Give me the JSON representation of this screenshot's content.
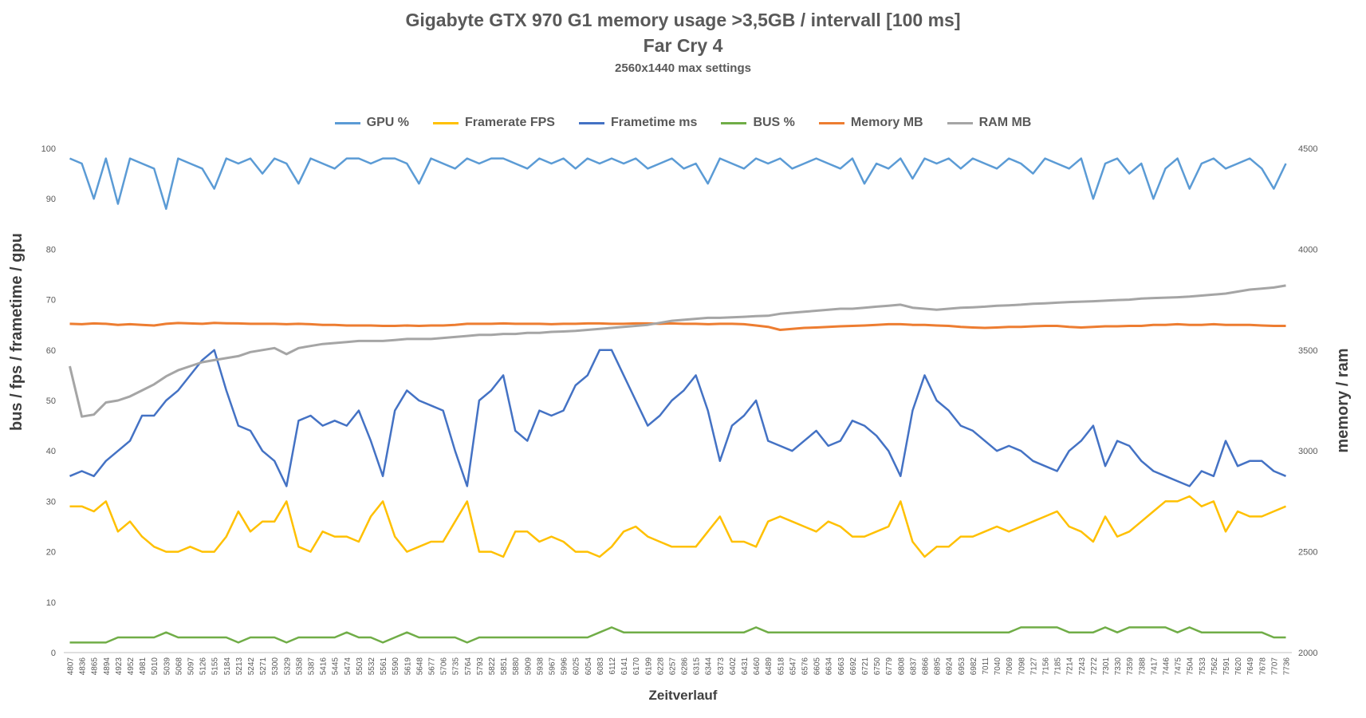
{
  "chart_data": {
    "type": "line",
    "title": "Gigabyte GTX 970 G1 memory usage >3,5GB / intervall [100 ms]",
    "subtitle": "Far Cry 4",
    "subtitle2": "2560x1440 max settings",
    "xlabel": "Zeitverlauf",
    "ylabel_left": "bus / fps / frametime / gpu",
    "ylabel_right": "memory / ram",
    "ylim_left": [
      0,
      100
    ],
    "ylim_right": [
      2000,
      4500
    ],
    "yticks_left": [
      0,
      10,
      20,
      30,
      40,
      50,
      60,
      70,
      80,
      90,
      100
    ],
    "yticks_right": [
      2000,
      2500,
      3000,
      3500,
      4000,
      4500
    ],
    "legend_position": "top",
    "grid": false,
    "x": [
      4807,
      4836,
      4865,
      4894,
      4923,
      4952,
      4981,
      5010,
      5039,
      5068,
      5097,
      5126,
      5155,
      5184,
      5213,
      5242,
      5271,
      5300,
      5329,
      5358,
      5387,
      5416,
      5445,
      5474,
      5503,
      5532,
      5561,
      5590,
      5619,
      5648,
      5677,
      5706,
      5735,
      5764,
      5793,
      5822,
      5851,
      5880,
      5909,
      5938,
      5967,
      5996,
      6025,
      6054,
      6083,
      6112,
      6141,
      6170,
      6199,
      6228,
      6257,
      6286,
      6315,
      6344,
      6373,
      6402,
      6431,
      6460,
      6489,
      6518,
      6547,
      6576,
      6605,
      6634,
      6663,
      6692,
      6721,
      6750,
      6779,
      6808,
      6837,
      6866,
      6895,
      6924,
      6953,
      6982,
      7011,
      7040,
      7069,
      7098,
      7127,
      7156,
      7185,
      7214,
      7243,
      7272,
      7301,
      7330,
      7359,
      7388,
      7417,
      7446,
      7475,
      7504,
      7533,
      7562,
      7591,
      7620,
      7649,
      7678,
      7707,
      7736
    ],
    "series": [
      {
        "name": "GPU %",
        "axis": "left",
        "color": "#5b9bd5",
        "values": [
          98,
          97,
          90,
          98,
          89,
          98,
          97,
          96,
          88,
          98,
          97,
          96,
          92,
          98,
          97,
          98,
          95,
          98,
          97,
          93,
          98,
          97,
          96,
          98,
          98,
          97,
          98,
          98,
          97,
          93,
          98,
          97,
          96,
          98,
          97,
          98,
          98,
          97,
          96,
          98,
          97,
          98,
          96,
          98,
          97,
          98,
          97,
          98,
          96,
          97,
          98,
          96,
          97,
          93,
          98,
          97,
          96,
          98,
          97,
          98,
          96,
          97,
          98,
          97,
          96,
          98,
          93,
          97,
          96,
          98,
          94,
          98,
          97,
          98,
          96,
          98,
          97,
          96,
          98,
          97,
          95,
          98,
          97,
          96,
          98,
          90,
          97,
          98,
          95,
          97,
          90,
          96,
          98,
          92,
          97,
          98,
          96,
          97,
          98,
          96,
          92,
          97
        ]
      },
      {
        "name": "Framerate FPS",
        "axis": "left",
        "color": "#ffc000",
        "values": [
          29,
          29,
          28,
          30,
          24,
          26,
          23,
          21,
          20,
          20,
          21,
          20,
          20,
          23,
          28,
          24,
          26,
          26,
          30,
          21,
          20,
          24,
          23,
          23,
          22,
          27,
          30,
          23,
          20,
          21,
          22,
          22,
          26,
          30,
          20,
          20,
          19,
          24,
          24,
          22,
          23,
          22,
          20,
          20,
          19,
          21,
          24,
          25,
          23,
          22,
          21,
          21,
          21,
          24,
          27,
          22,
          22,
          21,
          26,
          27,
          26,
          25,
          24,
          26,
          25,
          23,
          23,
          24,
          25,
          30,
          22,
          19,
          21,
          21,
          23,
          23,
          24,
          25,
          24,
          25,
          26,
          27,
          28,
          25,
          24,
          22,
          27,
          23,
          24,
          26,
          28,
          30,
          30,
          31,
          29,
          30,
          24,
          28,
          27,
          27,
          28,
          29
        ]
      },
      {
        "name": "Frametime ms",
        "axis": "left",
        "color": "#4472c4",
        "values": [
          35,
          36,
          35,
          38,
          40,
          42,
          47,
          47,
          50,
          52,
          55,
          58,
          60,
          52,
          45,
          44,
          40,
          38,
          33,
          46,
          47,
          45,
          46,
          45,
          48,
          42,
          35,
          48,
          52,
          50,
          49,
          48,
          40,
          33,
          50,
          52,
          55,
          44,
          42,
          48,
          47,
          48,
          53,
          55,
          60,
          60,
          55,
          50,
          45,
          47,
          50,
          52,
          55,
          48,
          38,
          45,
          47,
          50,
          42,
          41,
          40,
          42,
          44,
          41,
          42,
          46,
          45,
          43,
          40,
          35,
          48,
          55,
          50,
          48,
          45,
          44,
          42,
          40,
          41,
          40,
          38,
          37,
          36,
          40,
          42,
          45,
          37,
          42,
          41,
          38,
          36,
          35,
          34,
          33,
          36,
          35,
          42,
          37,
          38,
          38,
          36,
          35
        ]
      },
      {
        "name": "BUS %",
        "axis": "left",
        "color": "#70ad47",
        "values": [
          2,
          2,
          2,
          2,
          3,
          3,
          3,
          3,
          4,
          3,
          3,
          3,
          3,
          3,
          2,
          3,
          3,
          3,
          2,
          3,
          3,
          3,
          3,
          4,
          3,
          3,
          2,
          3,
          4,
          3,
          3,
          3,
          3,
          2,
          3,
          3,
          3,
          3,
          3,
          3,
          3,
          3,
          3,
          3,
          4,
          5,
          4,
          4,
          4,
          4,
          4,
          4,
          4,
          4,
          4,
          4,
          4,
          5,
          4,
          4,
          4,
          4,
          4,
          4,
          4,
          4,
          4,
          4,
          4,
          4,
          4,
          4,
          4,
          4,
          4,
          4,
          4,
          4,
          4,
          5,
          5,
          5,
          5,
          4,
          4,
          4,
          5,
          4,
          5,
          5,
          5,
          5,
          4,
          5,
          4,
          4,
          4,
          4,
          4,
          4,
          3,
          3
        ]
      },
      {
        "name": "Memory MB",
        "axis": "right",
        "color": "#ed7d31",
        "values": [
          3630,
          3628,
          3632,
          3630,
          3625,
          3628,
          3625,
          3622,
          3630,
          3634,
          3632,
          3630,
          3635,
          3633,
          3632,
          3630,
          3630,
          3630,
          3628,
          3630,
          3628,
          3625,
          3625,
          3622,
          3622,
          3622,
          3620,
          3620,
          3622,
          3620,
          3622,
          3622,
          3625,
          3630,
          3630,
          3630,
          3632,
          3630,
          3630,
          3630,
          3628,
          3630,
          3630,
          3632,
          3632,
          3630,
          3630,
          3632,
          3632,
          3630,
          3632,
          3630,
          3630,
          3628,
          3630,
          3630,
          3628,
          3622,
          3615,
          3600,
          3605,
          3610,
          3612,
          3615,
          3618,
          3620,
          3622,
          3625,
          3628,
          3628,
          3625,
          3625,
          3622,
          3620,
          3615,
          3612,
          3610,
          3612,
          3615,
          3615,
          3618,
          3620,
          3620,
          3615,
          3612,
          3615,
          3618,
          3618,
          3620,
          3620,
          3625,
          3625,
          3628,
          3625,
          3625,
          3628,
          3625,
          3625,
          3625,
          3622,
          3620,
          3620
        ]
      },
      {
        "name": "RAM MB",
        "axis": "right",
        "color": "#a5a5a5",
        "values": [
          3420,
          3170,
          3180,
          3240,
          3250,
          3270,
          3300,
          3330,
          3370,
          3400,
          3420,
          3440,
          3450,
          3460,
          3470,
          3490,
          3500,
          3510,
          3480,
          3510,
          3520,
          3530,
          3535,
          3540,
          3545,
          3545,
          3545,
          3550,
          3555,
          3555,
          3555,
          3560,
          3565,
          3570,
          3575,
          3575,
          3580,
          3580,
          3585,
          3585,
          3590,
          3592,
          3595,
          3600,
          3605,
          3610,
          3615,
          3620,
          3625,
          3635,
          3645,
          3650,
          3655,
          3660,
          3660,
          3662,
          3665,
          3668,
          3670,
          3680,
          3685,
          3690,
          3695,
          3700,
          3705,
          3705,
          3710,
          3715,
          3720,
          3725,
          3710,
          3705,
          3700,
          3705,
          3710,
          3712,
          3715,
          3720,
          3722,
          3725,
          3730,
          3732,
          3735,
          3738,
          3740,
          3742,
          3745,
          3748,
          3750,
          3755,
          3758,
          3760,
          3762,
          3765,
          3770,
          3775,
          3780,
          3790,
          3800,
          3805,
          3810,
          3820
        ]
      }
    ]
  }
}
